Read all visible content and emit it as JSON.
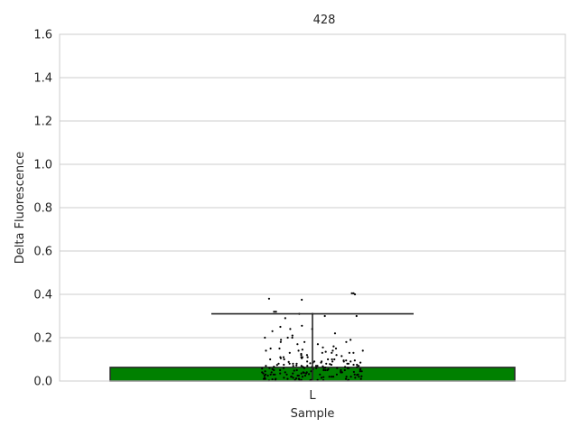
{
  "chart_data": {
    "type": "bar",
    "title": "428",
    "xlabel": "Sample",
    "ylabel": "Delta Fluorescence",
    "categories": [
      "L"
    ],
    "values": [
      0.063
    ],
    "error_bar": {
      "low": 0.0,
      "high": 0.31
    },
    "ylim": [
      0,
      1.6
    ],
    "yticks": [
      "0.0",
      "0.2",
      "0.4",
      "0.6",
      "0.8",
      "1.0",
      "1.2",
      "1.4",
      "1.6"
    ],
    "grid": true,
    "bar_color": "#008000",
    "point_color": "#000000",
    "points": [
      0.405,
      0.4,
      0.38,
      0.375,
      0.405,
      0.32,
      0.31,
      0.31,
      0.3,
      0.29,
      0.32,
      0.3,
      0.255,
      0.25,
      0.24,
      0.24,
      0.23,
      0.22,
      0.21,
      0.2,
      0.2,
      0.19,
      0.19,
      0.18,
      0.18,
      0.18,
      0.17,
      0.17,
      0.16,
      0.155,
      0.15,
      0.15,
      0.145,
      0.14,
      0.14,
      0.14,
      0.135,
      0.13,
      0.13,
      0.13,
      0.125,
      0.12,
      0.12,
      0.115,
      0.11,
      0.11,
      0.11,
      0.105,
      0.1,
      0.1,
      0.1,
      0.1,
      0.095,
      0.095,
      0.09,
      0.09,
      0.09,
      0.09,
      0.085,
      0.085,
      0.08,
      0.08,
      0.08,
      0.08,
      0.08,
      0.075,
      0.075,
      0.075,
      0.07,
      0.07,
      0.07,
      0.07,
      0.07,
      0.065,
      0.065,
      0.065,
      0.06,
      0.06,
      0.06,
      0.06,
      0.06,
      0.06,
      0.055,
      0.055,
      0.055,
      0.05,
      0.05,
      0.05,
      0.05,
      0.05,
      0.05,
      0.045,
      0.045,
      0.045,
      0.045,
      0.04,
      0.04,
      0.04,
      0.04,
      0.04,
      0.04,
      0.035,
      0.035,
      0.035,
      0.035,
      0.03,
      0.03,
      0.03,
      0.03,
      0.03,
      0.03,
      0.03,
      0.025,
      0.025,
      0.025,
      0.025,
      0.02,
      0.02,
      0.02,
      0.02,
      0.02,
      0.02,
      0.02,
      0.015,
      0.015,
      0.015,
      0.015,
      0.01,
      0.01,
      0.01,
      0.01,
      0.01,
      0.01,
      0.005,
      0.005,
      0.005,
      0.005,
      0.005,
      0.003,
      0.003,
      0.002,
      0.002,
      0.06,
      0.07,
      0.08,
      0.05,
      0.04,
      0.03,
      0.02,
      0.01,
      0.09,
      0.1,
      0.12,
      0.13,
      0.065,
      0.075,
      0.085,
      0.045,
      0.035,
      0.025,
      0.015,
      0.055,
      0.068,
      0.072,
      0.14,
      0.15,
      0.11,
      0.105,
      0.095,
      0.078,
      0.058,
      0.048,
      0.038,
      0.028,
      0.018,
      0.008,
      0.062,
      0.066,
      0.074,
      0.082,
      0.088,
      0.052,
      0.042,
      0.032,
      0.022,
      0.012,
      0.006,
      0.004,
      0.11,
      0.13,
      0.2,
      0.06,
      0.07,
      0.05,
      0.04,
      0.03,
      0.02,
      0.01,
      0.08,
      0.09
    ]
  }
}
